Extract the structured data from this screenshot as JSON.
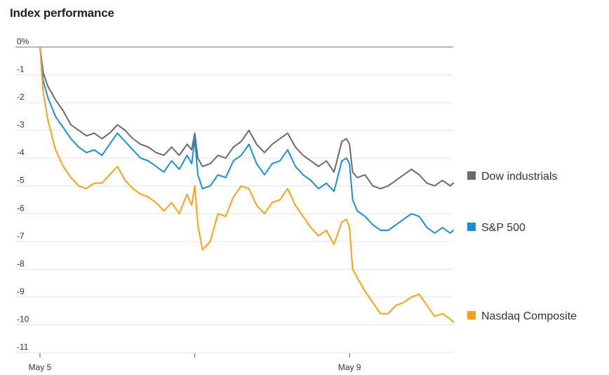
{
  "chart_data": {
    "type": "line",
    "title": "Index performance",
    "xlabel": "",
    "ylabel": "",
    "y_tick_labels": [
      "0%",
      "-1",
      "-2",
      "-3",
      "-4",
      "-5",
      "-6",
      "-7",
      "-8",
      "-9",
      "-10",
      "-11"
    ],
    "y_tick_values": [
      0,
      -1,
      -2,
      -3,
      -4,
      -5,
      -6,
      -7,
      -8,
      -9,
      -10,
      -11
    ],
    "ylim": [
      -11,
      0
    ],
    "x_tick_labels": [
      "May 5",
      "",
      "May 9"
    ],
    "x_tick_values": [
      0,
      1,
      2
    ],
    "xlim": [
      0,
      2.67
    ],
    "grid": true,
    "legend_placement": "right, at line ends",
    "series": [
      {
        "name": "Dow industrials",
        "color": "#6b6b6b",
        "x": [
          0,
          0.02,
          0.05,
          0.1,
          0.15,
          0.2,
          0.25,
          0.3,
          0.35,
          0.4,
          0.45,
          0.5,
          0.55,
          0.6,
          0.65,
          0.7,
          0.75,
          0.8,
          0.85,
          0.9,
          0.95,
          0.98,
          1.0,
          1.02,
          1.05,
          1.1,
          1.15,
          1.2,
          1.25,
          1.3,
          1.35,
          1.4,
          1.45,
          1.5,
          1.55,
          1.6,
          1.65,
          1.7,
          1.75,
          1.8,
          1.85,
          1.9,
          1.95,
          1.98,
          2.0,
          2.02,
          2.05,
          2.1,
          2.15,
          2.2,
          2.25,
          2.3,
          2.35,
          2.4,
          2.45,
          2.5,
          2.55,
          2.6,
          2.65,
          2.67
        ],
        "values": [
          0,
          -0.9,
          -1.4,
          -1.9,
          -2.3,
          -2.8,
          -3.0,
          -3.2,
          -3.1,
          -3.3,
          -3.1,
          -2.8,
          -3.0,
          -3.3,
          -3.5,
          -3.6,
          -3.8,
          -3.9,
          -3.6,
          -3.9,
          -3.5,
          -3.7,
          -3.1,
          -4.0,
          -4.3,
          -4.2,
          -3.9,
          -4.0,
          -3.6,
          -3.4,
          -3.0,
          -3.5,
          -3.8,
          -3.5,
          -3.3,
          -3.1,
          -3.6,
          -3.9,
          -4.1,
          -4.3,
          -4.1,
          -4.5,
          -3.4,
          -3.3,
          -3.5,
          -4.5,
          -4.7,
          -4.6,
          -5.0,
          -5.1,
          -5.0,
          -4.8,
          -4.6,
          -4.4,
          -4.6,
          -4.9,
          -5.0,
          -4.8,
          -5.0,
          -4.9
        ]
      },
      {
        "name": "S&P 500",
        "color": "#1b8fce",
        "x": [
          0,
          0.02,
          0.05,
          0.1,
          0.15,
          0.2,
          0.25,
          0.3,
          0.35,
          0.4,
          0.45,
          0.5,
          0.55,
          0.6,
          0.65,
          0.7,
          0.75,
          0.8,
          0.85,
          0.9,
          0.95,
          0.98,
          1.0,
          1.02,
          1.05,
          1.1,
          1.15,
          1.2,
          1.25,
          1.3,
          1.35,
          1.4,
          1.45,
          1.5,
          1.55,
          1.6,
          1.65,
          1.7,
          1.75,
          1.8,
          1.85,
          1.9,
          1.95,
          1.98,
          2.0,
          2.02,
          2.05,
          2.1,
          2.15,
          2.2,
          2.25,
          2.3,
          2.35,
          2.4,
          2.45,
          2.5,
          2.55,
          2.6,
          2.65,
          2.67
        ],
        "values": [
          0,
          -1.2,
          -1.8,
          -2.5,
          -2.9,
          -3.3,
          -3.6,
          -3.8,
          -3.7,
          -3.9,
          -3.5,
          -3.1,
          -3.4,
          -3.7,
          -4.0,
          -4.1,
          -4.3,
          -4.5,
          -4.1,
          -4.4,
          -3.9,
          -4.2,
          -3.3,
          -4.6,
          -5.1,
          -5.0,
          -4.6,
          -4.7,
          -4.1,
          -3.9,
          -3.5,
          -4.2,
          -4.6,
          -4.2,
          -4.1,
          -3.7,
          -4.3,
          -4.6,
          -4.8,
          -5.1,
          -4.9,
          -5.2,
          -4.1,
          -4.0,
          -4.2,
          -5.5,
          -5.9,
          -6.1,
          -6.4,
          -6.6,
          -6.6,
          -6.4,
          -6.2,
          -6.0,
          -6.1,
          -6.5,
          -6.7,
          -6.5,
          -6.7,
          -6.6
        ]
      },
      {
        "name": "Nasdaq Composite",
        "color": "#f2a21a",
        "x": [
          0,
          0.02,
          0.05,
          0.1,
          0.15,
          0.2,
          0.25,
          0.3,
          0.35,
          0.4,
          0.45,
          0.5,
          0.55,
          0.6,
          0.65,
          0.7,
          0.75,
          0.8,
          0.85,
          0.9,
          0.95,
          0.98,
          1.0,
          1.02,
          1.05,
          1.1,
          1.15,
          1.2,
          1.25,
          1.3,
          1.35,
          1.4,
          1.45,
          1.5,
          1.55,
          1.6,
          1.65,
          1.7,
          1.75,
          1.8,
          1.85,
          1.9,
          1.95,
          1.98,
          2.0,
          2.02,
          2.05,
          2.1,
          2.15,
          2.2,
          2.25,
          2.3,
          2.35,
          2.4,
          2.45,
          2.5,
          2.55,
          2.6,
          2.65,
          2.67
        ],
        "values": [
          0,
          -1.6,
          -2.6,
          -3.7,
          -4.3,
          -4.7,
          -5.0,
          -5.1,
          -4.9,
          -4.9,
          -4.6,
          -4.3,
          -4.8,
          -5.1,
          -5.3,
          -5.4,
          -5.6,
          -5.9,
          -5.6,
          -6.0,
          -5.3,
          -5.7,
          -5.0,
          -6.4,
          -7.3,
          -7.0,
          -6.0,
          -6.1,
          -5.4,
          -5.0,
          -5.1,
          -5.7,
          -6.0,
          -5.6,
          -5.5,
          -5.1,
          -5.7,
          -6.1,
          -6.5,
          -6.8,
          -6.6,
          -7.1,
          -6.3,
          -6.2,
          -6.5,
          -8.0,
          -8.3,
          -8.8,
          -9.2,
          -9.6,
          -9.6,
          -9.3,
          -9.2,
          -9.0,
          -8.9,
          -9.3,
          -9.7,
          -9.6,
          -9.8,
          -9.9
        ]
      }
    ]
  }
}
